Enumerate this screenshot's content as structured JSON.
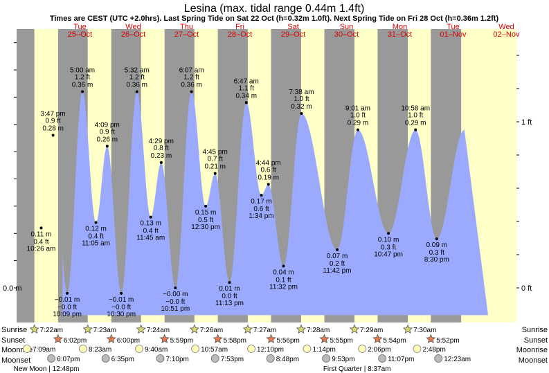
{
  "chart_data": {
    "type": "area",
    "title": "Lesina (max. tidal range 0.44m 1.4ft)",
    "subtitle": "Times are CEST (UTC +2.0hrs). Last Spring Tide on Sat 22 Oct (h=0.32m 1.0ft). Next Spring Tide on Fri 28 Oct (h=0.36m 1.2ft)",
    "days": [
      {
        "dow": "Tue",
        "date": "25–Oct"
      },
      {
        "dow": "Wed",
        "date": "26–Oct"
      },
      {
        "dow": "Thu",
        "date": "27–Oct"
      },
      {
        "dow": "Fri",
        "date": "28–Oct"
      },
      {
        "dow": "Sat",
        "date": "29–Oct"
      },
      {
        "dow": "Sun",
        "date": "30–Oct"
      },
      {
        "dow": "Mon",
        "date": "31–Oct"
      },
      {
        "dow": "Tue",
        "date": "01–Nov"
      },
      {
        "dow": "Wed",
        "date": "02–Nov"
      }
    ],
    "y_left": {
      "ticks": [
        {
          "label": "0.0 m",
          "value": 0.0
        }
      ]
    },
    "y_right": {
      "ticks": [
        {
          "label": "0 ft",
          "value": 0.0
        },
        {
          "label": "1 ft",
          "value": 0.3048
        }
      ]
    },
    "ylim": [
      -0.05,
      0.49
    ],
    "tides": [
      {
        "day": 0,
        "hour": 10.43,
        "type": "low",
        "time": "10:26 am",
        "m": 0.11,
        "m_label": "0.11 m",
        "ft_label": "0.4 ft"
      },
      {
        "day": 0,
        "hour": 15.78,
        "type": "high",
        "time": "3:47 pm",
        "m": 0.28,
        "m_label": "0.28 m",
        "ft_label": "0.9 ft"
      },
      {
        "day": 0,
        "hour": 22.15,
        "type": "low",
        "time": "10:09 pm",
        "m": -0.01,
        "m_label": "−0.01 m",
        "ft_label": "−0.0 ft"
      },
      {
        "day": 1,
        "hour": 5.0,
        "type": "high",
        "time": "5:00 am",
        "m": 0.36,
        "m_label": "0.36 m",
        "ft_label": "1.2 ft"
      },
      {
        "day": 1,
        "hour": 11.08,
        "type": "low",
        "time": "11:05 am",
        "m": 0.12,
        "m_label": "0.12 m",
        "ft_label": "0.4 ft"
      },
      {
        "day": 1,
        "hour": 16.15,
        "type": "high",
        "time": "4:09 pm",
        "m": 0.26,
        "m_label": "0.26 m",
        "ft_label": "0.9 ft"
      },
      {
        "day": 1,
        "hour": 22.5,
        "type": "low",
        "time": "10:30 pm",
        "m": -0.01,
        "m_label": "−0.01 m",
        "ft_label": "−0.0 ft"
      },
      {
        "day": 2,
        "hour": 5.53,
        "type": "high",
        "time": "5:32 am",
        "m": 0.36,
        "m_label": "0.36 m",
        "ft_label": "1.2 ft"
      },
      {
        "day": 2,
        "hour": 11.75,
        "type": "low",
        "time": "11:45 am",
        "m": 0.13,
        "m_label": "0.13 m",
        "ft_label": "0.4 ft"
      },
      {
        "day": 2,
        "hour": 16.48,
        "type": "high",
        "time": "4:29 pm",
        "m": 0.23,
        "m_label": "0.23 m",
        "ft_label": "0.8 ft"
      },
      {
        "day": 2,
        "hour": 22.85,
        "type": "low",
        "time": "10:51 pm",
        "m": 0.0,
        "m_label": "−0.00 m",
        "ft_label": "−0.0 ft"
      },
      {
        "day": 3,
        "hour": 6.12,
        "type": "high",
        "time": "6:07 am",
        "m": 0.36,
        "m_label": "0.36 m",
        "ft_label": "1.2 ft"
      },
      {
        "day": 3,
        "hour": 12.5,
        "type": "low",
        "time": "12:30 pm",
        "m": 0.15,
        "m_label": "0.15 m",
        "ft_label": "0.5 ft"
      },
      {
        "day": 3,
        "hour": 16.75,
        "type": "high",
        "time": "4:45 pm",
        "m": 0.21,
        "m_label": "0.21 m",
        "ft_label": "0.7 ft"
      },
      {
        "day": 3,
        "hour": 23.22,
        "type": "low",
        "time": "11:13 pm",
        "m": 0.01,
        "m_label": "0.01 m",
        "ft_label": "0.0 ft"
      },
      {
        "day": 4,
        "hour": 6.78,
        "type": "high",
        "time": "6:47 am",
        "m": 0.34,
        "m_label": "0.34 m",
        "ft_label": "1.1 ft"
      },
      {
        "day": 4,
        "hour": 13.57,
        "type": "low",
        "time": "1:34 pm",
        "m": 0.17,
        "m_label": "0.17 m",
        "ft_label": "0.6 ft"
      },
      {
        "day": 4,
        "hour": 16.73,
        "type": "high",
        "time": "4:44 pm",
        "m": 0.19,
        "m_label": "0.19 m",
        "ft_label": "0.6 ft"
      },
      {
        "day": 4,
        "hour": 23.53,
        "type": "low",
        "time": "11:32 pm",
        "m": 0.04,
        "m_label": "0.04 m",
        "ft_label": "0.1 ft"
      },
      {
        "day": 5,
        "hour": 7.63,
        "type": "high",
        "time": "7:38 am",
        "m": 0.32,
        "m_label": "0.32 m",
        "ft_label": "1.0 ft"
      },
      {
        "day": 5,
        "hour": 23.7,
        "type": "low",
        "time": "11:42 pm",
        "m": 0.07,
        "m_label": "0.07 m",
        "ft_label": "0.2 ft"
      },
      {
        "day": 6,
        "hour": 9.02,
        "type": "high",
        "time": "9:01 am",
        "m": 0.29,
        "m_label": "0.29 m",
        "ft_label": "1.0 ft"
      },
      {
        "day": 6,
        "hour": 22.78,
        "type": "low",
        "time": "10:47 pm",
        "m": 0.1,
        "m_label": "0.10 m",
        "ft_label": "0.3 ft"
      },
      {
        "day": 7,
        "hour": 10.97,
        "type": "high",
        "time": "10:58 am",
        "m": 0.29,
        "m_label": "0.29 m",
        "ft_label": "1.0 ft"
      },
      {
        "day": 7,
        "hour": 20.5,
        "type": "low",
        "time": "8:30 pm",
        "m": 0.09,
        "m_label": "0.09 m",
        "ft_label": "0.3 ft"
      }
    ],
    "rows": {
      "sunrise": "Sunrise",
      "sunset": "Sunset",
      "moonrise": "Moonrise",
      "moonset": "Moonset"
    },
    "sunrise": [
      "7:22am",
      "7:23am",
      "7:24am",
      "7:26am",
      "7:27am",
      "7:28am",
      "7:29am",
      "7:30am"
    ],
    "sunset": [
      "6:02pm",
      "6:00pm",
      "5:59pm",
      "5:58pm",
      "5:56pm",
      "5:55pm",
      "5:54pm",
      "5:52pm"
    ],
    "sun_hours": [
      {
        "rise": 7.37,
        "set": 18.03
      },
      {
        "rise": 7.38,
        "set": 18.0
      },
      {
        "rise": 7.4,
        "set": 17.98
      },
      {
        "rise": 7.43,
        "set": 17.97
      },
      {
        "rise": 7.45,
        "set": 17.93
      },
      {
        "rise": 7.47,
        "set": 17.92
      },
      {
        "rise": 7.48,
        "set": 17.9
      },
      {
        "rise": 7.5,
        "set": 17.87
      }
    ],
    "moonrise": [
      {
        "day": 0,
        "hour": 7.15,
        "time": "7:09am"
      },
      {
        "day": 1,
        "hour": 8.38,
        "time": "8:23am"
      },
      {
        "day": 2,
        "hour": 9.67,
        "time": "9:40am"
      },
      {
        "day": 3,
        "hour": 10.95,
        "time": "10:57am"
      },
      {
        "day": 4,
        "hour": 12.17,
        "time": "12:10pm"
      },
      {
        "day": 5,
        "hour": 13.23,
        "time": "1:14pm"
      },
      {
        "day": 6,
        "hour": 14.1,
        "time": "2:06pm"
      },
      {
        "day": 7,
        "hour": 14.8,
        "time": "2:48pm"
      }
    ],
    "moonset": [
      {
        "day": 0,
        "hour": 18.12,
        "time": "6:07pm"
      },
      {
        "day": 1,
        "hour": 18.58,
        "time": "6:35pm"
      },
      {
        "day": 2,
        "hour": 19.17,
        "time": "7:10pm"
      },
      {
        "day": 3,
        "hour": 19.88,
        "time": "7:53pm"
      },
      {
        "day": 4,
        "hour": 20.8,
        "time": "8:48pm"
      },
      {
        "day": 5,
        "hour": 21.88,
        "time": "9:53pm"
      },
      {
        "day": 6,
        "hour": 23.12,
        "time": "11:07pm"
      },
      {
        "day": 8,
        "hour": 0.38,
        "time": "12:23am"
      }
    ],
    "moon_phases": [
      {
        "day": 0,
        "hour": 12.8,
        "text": "New Moon | 12:48pm"
      },
      {
        "day": 6,
        "hour": 8.62,
        "text": "First Quarter | 8:37am"
      }
    ],
    "colors": {
      "night": "#999999",
      "day": "#ffffc8",
      "water": "#9baaff",
      "day_label": "#dd0000",
      "sunrise_star": "#d8d870",
      "sunset_star": "#e87a50",
      "moonrise_dot": "#ffffc0",
      "moonset_dot": "#bbbbbb"
    }
  }
}
